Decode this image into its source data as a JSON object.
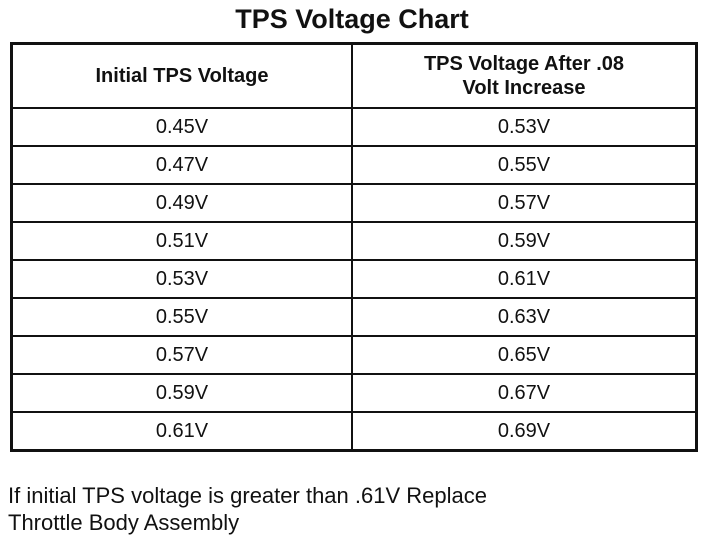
{
  "title": "TPS Voltage Chart",
  "headers": [
    "Initial TPS Voltage",
    "TPS Voltage After .08 Volt Increase"
  ],
  "rows": [
    [
      "0.45V",
      "0.53V"
    ],
    [
      "0.47V",
      "0.55V"
    ],
    [
      "0.49V",
      "0.57V"
    ],
    [
      "0.51V",
      "0.59V"
    ],
    [
      "0.53V",
      "0.61V"
    ],
    [
      "0.55V",
      "0.63V"
    ],
    [
      "0.57V",
      "0.65V"
    ],
    [
      "0.59V",
      "0.67V"
    ],
    [
      "0.61V",
      "0.69V"
    ]
  ],
  "note_lines": [
    "If initial TPS voltage is greater than .61V Replace",
    "Throttle Body Assembly"
  ]
}
